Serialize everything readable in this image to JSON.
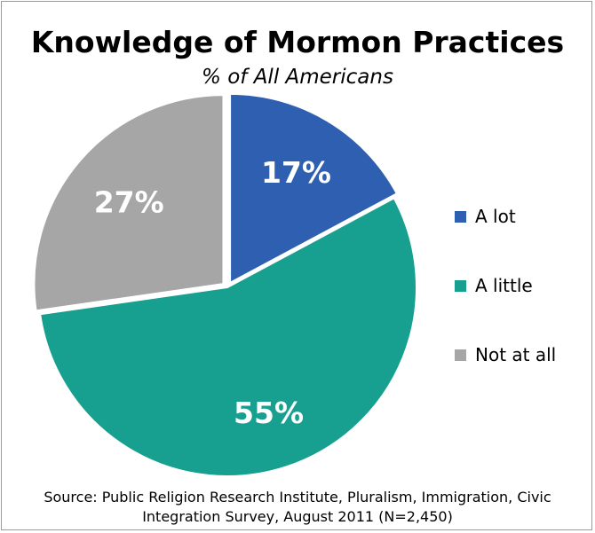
{
  "chart_data": {
    "type": "pie",
    "title": "Knowledge of Mormon Practices",
    "subtitle": "% of All Americans",
    "categories": [
      "A lot",
      "A little",
      "Not at all"
    ],
    "values": [
      17,
      55,
      27
    ],
    "value_labels": [
      "17%",
      "55%",
      "27%"
    ],
    "colors": [
      "#2e5fb0",
      "#17a08f",
      "#a6a6a6"
    ],
    "legend_placement": "right",
    "source_lines": [
      "Source: Public Religion Research Institute, Pluralism, Immigration, Civic",
      "Integration Survey, August 2011 (N=2,450)"
    ]
  }
}
